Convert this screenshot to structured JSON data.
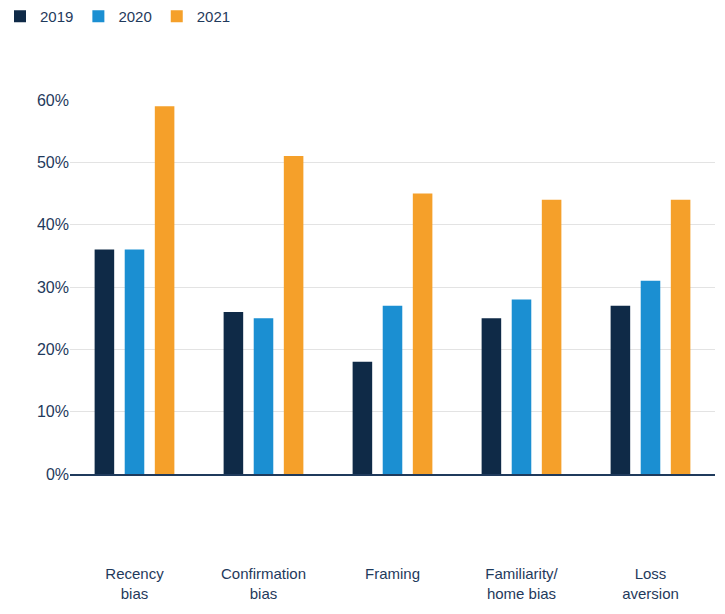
{
  "chart_data": {
    "type": "bar",
    "categories": [
      "Recency\nbias",
      "Confirmation\nbias",
      "Framing",
      "Familiarity/\nhome bias",
      "Loss\naversion"
    ],
    "series": [
      {
        "name": "2019",
        "color": "#0f2a47",
        "values": [
          36,
          26,
          18,
          25,
          27
        ]
      },
      {
        "name": "2020",
        "color": "#1b8fd2",
        "values": [
          36,
          25,
          27,
          28,
          31
        ]
      },
      {
        "name": "2021",
        "color": "#f5a02a",
        "values": [
          59,
          51,
          45,
          44,
          44
        ]
      }
    ],
    "ylim": [
      0,
      60
    ],
    "yticks": [
      {
        "value": 0,
        "label": "0%"
      },
      {
        "value": 10,
        "label": "10%"
      },
      {
        "value": 20,
        "label": "20%"
      },
      {
        "value": 30,
        "label": "30%"
      },
      {
        "value": 40,
        "label": "40%"
      },
      {
        "value": 50,
        "label": "50%"
      },
      {
        "value": 60,
        "label": "60%"
      }
    ],
    "grid": true,
    "legend": "top left"
  }
}
